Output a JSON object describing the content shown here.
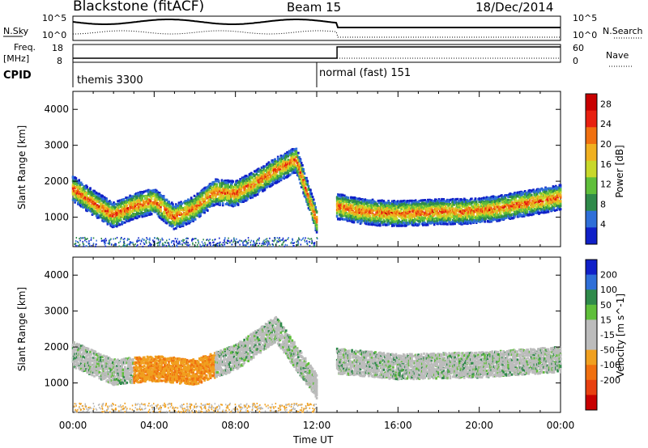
{
  "header": {
    "station": "Blackstone (fitACF)",
    "beam": "Beam 15",
    "date": "18/Dec/2014"
  },
  "left_labels": {
    "nsky": "N.Sky",
    "freq_line1": "Freq.",
    "freq_line2": "[MHz]",
    "cpid": "CPID"
  },
  "right_labels": {
    "nsearch": "N.Search",
    "nave": "Nave"
  },
  "noise_axis": {
    "top": "10^5",
    "bottom": "10^0"
  },
  "freq_axis": {
    "top": "18",
    "bottom": "8"
  },
  "nave_axis": {
    "top": "60",
    "bottom": "0"
  },
  "cpid_segments": [
    {
      "label": "themis 3300",
      "start_hour": 0,
      "end_hour": 12
    },
    {
      "label": "normal (fast) 151",
      "start_hour": 12,
      "end_hour": 24
    }
  ],
  "x_axis": {
    "title": "Time UT",
    "ticks": [
      "00:00",
      "04:00",
      "08:00",
      "12:00",
      "16:00",
      "20:00",
      "00:00"
    ]
  },
  "colors": {
    "power_scale": [
      "#1020c8",
      "#2f6fd8",
      "#2f8a4a",
      "#5fbf3a",
      "#c8d82a",
      "#f0b020",
      "#f07010",
      "#e82010",
      "#c80000"
    ],
    "velocity_scale": [
      "#1020c8",
      "#2f6fd8",
      "#2f8a4a",
      "#5fbf3a",
      "#bcbcbc",
      "#bcbcbc",
      "#f0a020",
      "#f07010",
      "#e84010",
      "#c80000"
    ]
  },
  "chart_data": [
    {
      "type": "heatmap",
      "title": "",
      "xlabel": "",
      "ylabel": "Slant Range [km]",
      "xlim": [
        0,
        24
      ],
      "ylim": [
        180,
        4500
      ],
      "y_ticks": [
        1000,
        2000,
        3000,
        4000
      ],
      "colorbar": {
        "label": "Power [dB]",
        "ticks": [
          4,
          8,
          12,
          16,
          20,
          24,
          28
        ],
        "range": [
          0,
          30
        ]
      },
      "bands": [
        {
          "t": [
            0.0,
            1.0,
            2.0,
            3.0,
            4.0,
            5.0,
            6.0,
            7.0,
            8.0,
            9.0,
            10.0,
            11.0,
            12.0
          ],
          "r": [
            1800,
            1400,
            1050,
            1300,
            1450,
            1000,
            1250,
            1700,
            1650,
            1950,
            2300,
            2600,
            900
          ],
          "value": 22
        },
        {
          "t": [
            13.0,
            14.0,
            15.0,
            16.0,
            17.0,
            18.0,
            19.0,
            20.0,
            21.0,
            22.0,
            23.0,
            24.0
          ],
          "r": [
            1300,
            1180,
            1120,
            1100,
            1120,
            1150,
            1150,
            1180,
            1250,
            1350,
            1450,
            1550
          ],
          "value": 24
        }
      ]
    },
    {
      "type": "heatmap",
      "title": "",
      "xlabel": "Time UT",
      "ylabel": "Slant Range [km]",
      "xlim": [
        0,
        24
      ],
      "ylim": [
        180,
        4500
      ],
      "y_ticks": [
        1000,
        2000,
        3000,
        4000
      ],
      "colorbar": {
        "label": "Velocity [m s^-1]",
        "ticks": [
          200,
          100,
          50,
          15,
          -15,
          -50,
          -100,
          -200
        ],
        "range": [
          -250,
          250
        ]
      },
      "bands": [
        {
          "t": [
            0.0,
            2.0,
            4.0,
            6.0,
            8.0,
            10.0,
            12.0
          ],
          "r": [
            1800,
            1300,
            1400,
            1300,
            1700,
            2500,
            900
          ],
          "value": 0
        },
        {
          "t": [
            13.0,
            16.0,
            20.0,
            24.0
          ],
          "r": [
            1600,
            1450,
            1500,
            1650
          ],
          "value": 0
        }
      ]
    }
  ]
}
